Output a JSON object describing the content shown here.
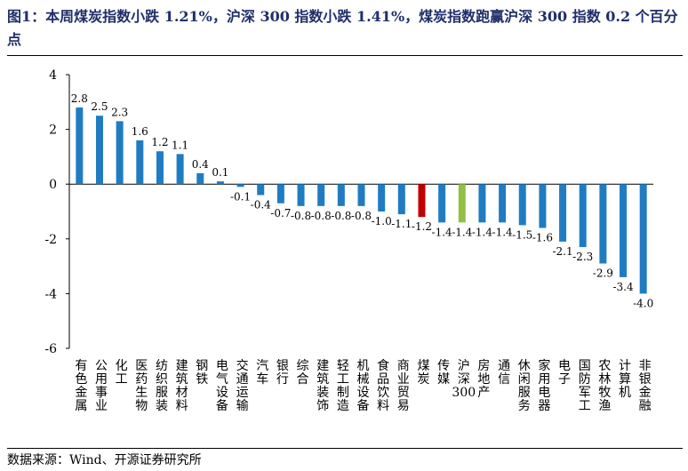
{
  "title": "图1：本周煤炭指数小跌 1.21%，沪深 300 指数小跌 1.41%，煤炭指数跑赢沪深 300 指数 0.2 个百分点",
  "source": "数据来源：Wind、开源证券研究所",
  "chart_data": {
    "type": "bar",
    "categories": [
      "有色金属",
      "公用事业",
      "化工",
      "医药生物",
      "纺织服装",
      "建筑材料",
      "钢铁",
      "电气设备",
      "交通运输",
      "汽车",
      "银行",
      "综合",
      "建筑装饰",
      "轻工制造",
      "机械设备",
      "食品饮料",
      "商业贸易",
      "煤炭",
      "传媒",
      "沪深300",
      "房地产",
      "通信",
      "休闲服务",
      "家用电器",
      "电子",
      "国防军工",
      "农林牧渔",
      "计算机",
      "非银金融"
    ],
    "values": [
      2.8,
      2.5,
      2.3,
      1.6,
      1.2,
      1.1,
      0.4,
      0.1,
      -0.1,
      -0.4,
      -0.7,
      -0.8,
      -0.8,
      -0.8,
      -0.8,
      -1.0,
      -1.1,
      -1.2,
      -1.4,
      -1.4,
      -1.4,
      -1.4,
      -1.5,
      -1.6,
      -2.1,
      -2.3,
      -2.9,
      -3.4,
      -4.0
    ],
    "value_labels": [
      "2.8",
      "2.5",
      "2.3",
      "1.6",
      "1.2",
      "1.1",
      "0.4",
      "0.1",
      "-0.1",
      "-0.4",
      "-0.7",
      "-0.8",
      "-0.8",
      "-0.8",
      "-0.8",
      "-1.0",
      "-1.1",
      "-1.2",
      "-1.4",
      "-1.4",
      "-1.4",
      "-1.4",
      "-1.5",
      "-1.6",
      "-2.1",
      "-2.3",
      "-2.9",
      "-3.4",
      "-4.0"
    ],
    "ylim": [
      -6,
      4
    ],
    "yticks": [
      4,
      2,
      0,
      -2,
      -4,
      -6
    ],
    "grid": false,
    "colors": {
      "default": "#1f7cc3",
      "highlight_coal": "#c00000",
      "highlight_index": "#92c045"
    },
    "highlights": {
      "煤炭": "highlight_coal",
      "沪深300": "highlight_index"
    }
  }
}
